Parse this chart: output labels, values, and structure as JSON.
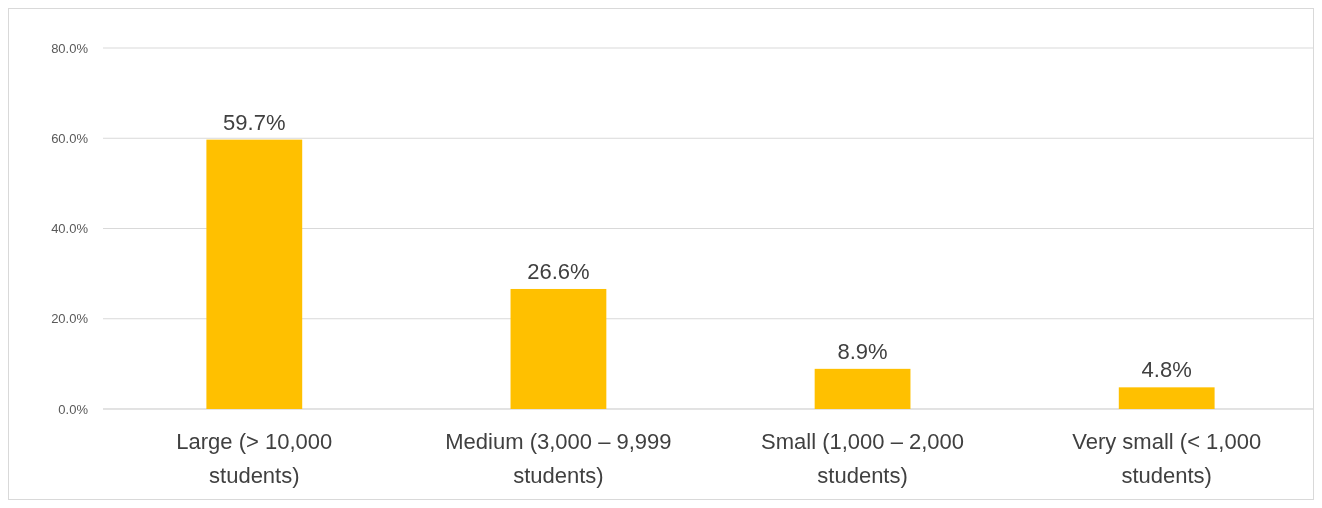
{
  "chart_data": {
    "type": "bar",
    "categories": [
      "Large (> 10,000 students)",
      "Medium (3,000 – 9,999 students)",
      "Small (1,000 – 2,000 students)",
      "Very small (< 1,000 students)"
    ],
    "values": [
      59.7,
      26.6,
      8.9,
      4.8
    ],
    "value_labels": [
      "59.7%",
      "26.6%",
      "8.9%",
      "4.8%"
    ],
    "color": "#ffc000",
    "ylim": [
      0,
      80
    ],
    "yticks": [
      {
        "value": 0,
        "label": "0.0%"
      },
      {
        "value": 20,
        "label": "20.0%"
      },
      {
        "value": 40,
        "label": "40.0%"
      },
      {
        "value": 60,
        "label": "60.0%"
      },
      {
        "value": 80,
        "label": "80.0%"
      }
    ],
    "grid": "y"
  }
}
